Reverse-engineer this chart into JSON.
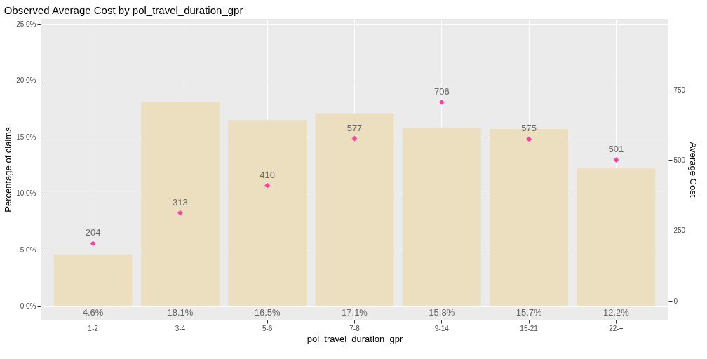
{
  "chart_data": {
    "type": "bar",
    "title": "Observed Average Cost by pol_travel_duration_gpr",
    "xlabel": "pol_travel_duration_gpr",
    "ylabel": "Percentage of claims",
    "y2label": "Average Cost",
    "categories": [
      "1-2",
      "3-4",
      "5-6",
      "7-8",
      "9-14",
      "15-21",
      "22-+"
    ],
    "series": [
      {
        "color": "#ecdfc0",
        "values": [
          4.6,
          18.1,
          16.5,
          17.1,
          15.8,
          15.7,
          12.2
        ],
        "value_labels": [
          "4.6%",
          "18.1%",
          "16.5%",
          "17.1%",
          "15.8%",
          "15.7%",
          "12.2%"
        ]
      },
      {
        "type": "scatter",
        "axis": "y2",
        "color": "#ff3fa4",
        "marker": "diamond",
        "values": [
          204,
          313,
          410,
          577,
          706,
          575,
          501
        ],
        "value_labels": [
          "204",
          "313",
          "410",
          "577",
          "706",
          "575",
          "501"
        ]
      }
    ],
    "ylim": [
      -1.2,
      25.45
    ],
    "yticks": [
      {
        "value": 0,
        "label": "0.0%"
      },
      {
        "value": 5,
        "label": "5.0%"
      },
      {
        "value": 10,
        "label": "10.0%"
      },
      {
        "value": 15,
        "label": "15.0%"
      },
      {
        "value": 20,
        "label": "20.0%"
      },
      {
        "value": 25,
        "label": "25.0%"
      }
    ],
    "y2lim": [
      -67,
      1002
    ],
    "y2ticks": [
      0,
      250,
      500,
      750
    ],
    "grid": true
  }
}
